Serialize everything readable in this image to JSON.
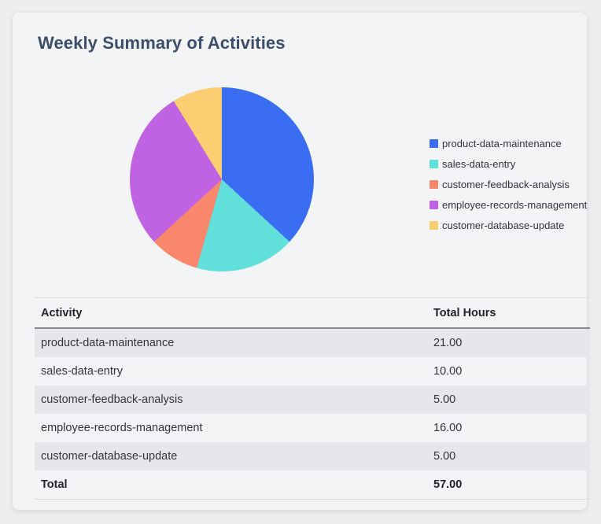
{
  "header": {
    "title": "Weekly Summary of Activities"
  },
  "chart_data": {
    "type": "pie",
    "title": "Weekly Summary of Activities",
    "categories": [
      "product-data-maintenance",
      "sales-data-entry",
      "customer-feedback-analysis",
      "employee-records-management",
      "customer-database-update"
    ],
    "values": [
      21,
      10,
      5,
      16,
      5
    ],
    "total": 57,
    "percentages": [
      36.84,
      17.54,
      8.77,
      28.07,
      8.77
    ],
    "colors": [
      "#3A6DF2",
      "#60DFDB",
      "#F8876B",
      "#BF63E2",
      "#FBCE72"
    ],
    "legend_position": "right",
    "start_angle_deg": 0,
    "direction": "clockwise"
  },
  "table": {
    "columns": [
      "Activity",
      "Total Hours"
    ],
    "rows": [
      {
        "activity": "product-data-maintenance",
        "hours": "21.00"
      },
      {
        "activity": "sales-data-entry",
        "hours": "10.00"
      },
      {
        "activity": "customer-feedback-analysis",
        "hours": "5.00"
      },
      {
        "activity": "employee-records-management",
        "hours": "16.00"
      },
      {
        "activity": "customer-database-update",
        "hours": "5.00"
      }
    ],
    "total_row": {
      "activity": "Total",
      "hours": "57.00"
    }
  }
}
